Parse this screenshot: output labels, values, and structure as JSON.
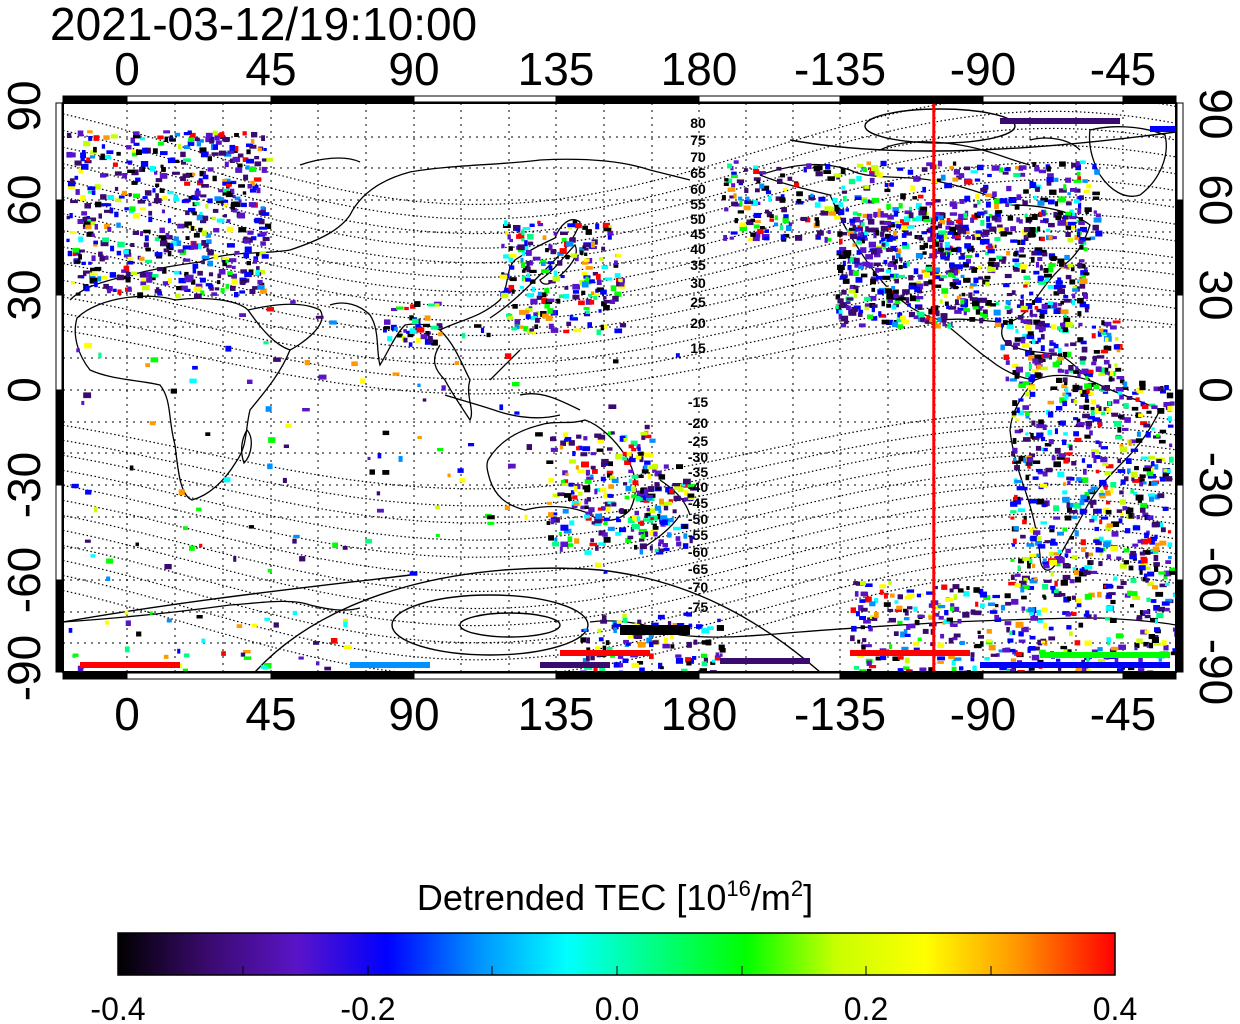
{
  "timestamp": "2021-03-12/19:10:00",
  "longitude_ticks": [
    "0",
    "45",
    "90",
    "135",
    "180",
    "-135",
    "-90",
    "-45"
  ],
  "latitude_ticks": [
    "90",
    "60",
    "30",
    "0",
    "-30",
    "-60",
    "-90"
  ],
  "contour_labels_north": [
    "80",
    "75",
    "70",
    "65",
    "60",
    "55",
    "50",
    "45",
    "40",
    "35",
    "30",
    "25",
    "20",
    "15"
  ],
  "contour_labels_south": [
    "-15",
    "-20",
    "-25",
    "-30",
    "-35",
    "-40",
    "-45",
    "-50",
    "-55",
    "-60",
    "-65",
    "-70",
    "-75"
  ],
  "terminator_longitude": -107,
  "colorbar": {
    "title_prefix": "Detrended TEC  [10",
    "title_exp1": "16",
    "title_mid": "/m",
    "title_exp2": "2",
    "title_suffix": "]",
    "min": -0.4,
    "max": 0.4,
    "tick_labels": [
      "-0.4",
      "-0.2",
      "0.0",
      "0.2",
      "0.4"
    ],
    "colors": [
      "#000000",
      "#3a0a6e",
      "#5a14c8",
      "#0000ff",
      "#0090ff",
      "#00ffff",
      "#00ff80",
      "#00ff00",
      "#c8ff00",
      "#ffff00",
      "#ff9900",
      "#ff0000"
    ]
  },
  "colors": {
    "terminator": "#ff0000",
    "coast": "#000000",
    "grid": "#000000"
  }
}
